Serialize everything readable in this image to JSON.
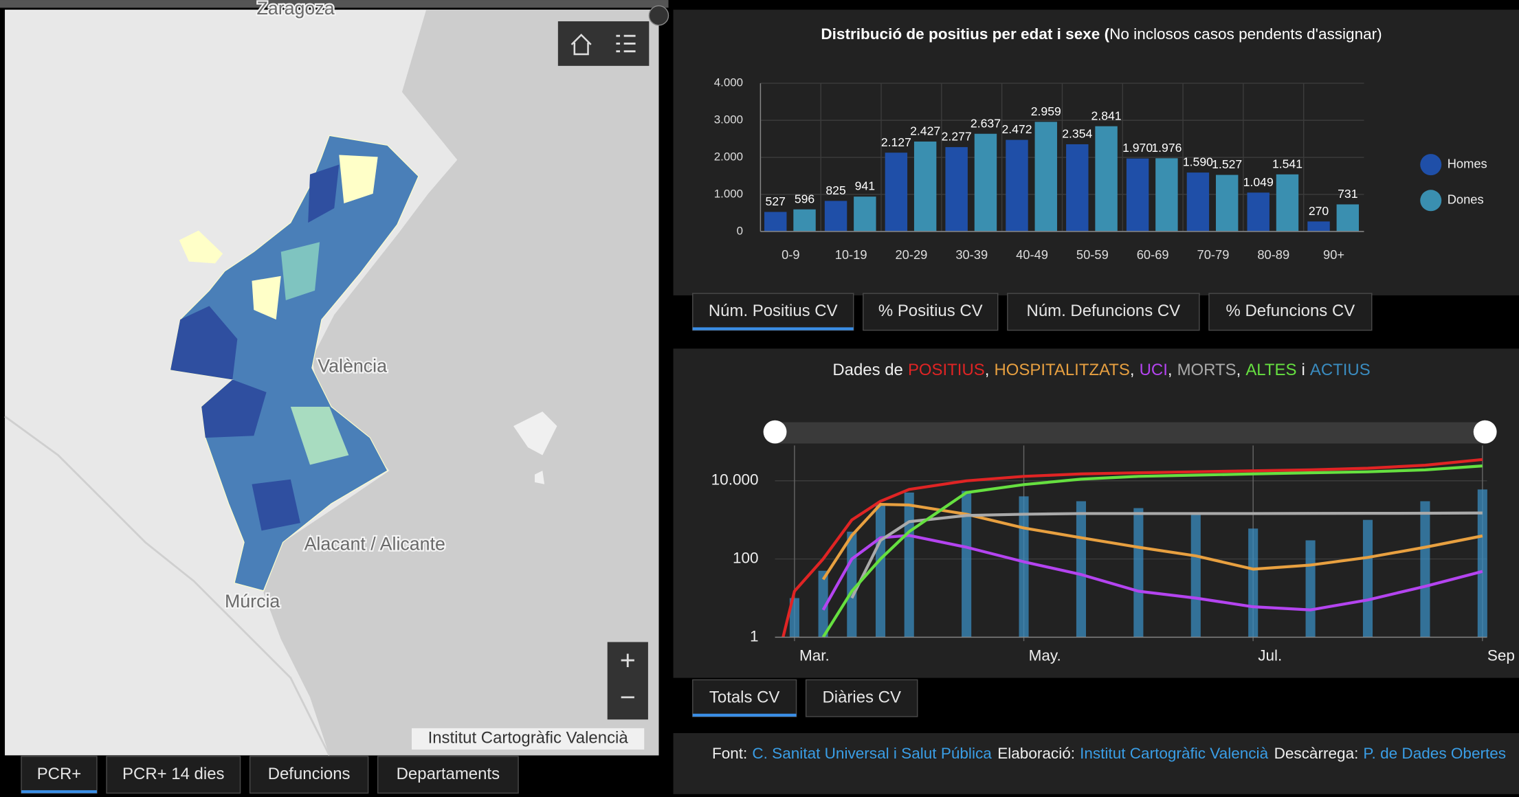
{
  "map": {
    "labels": [
      "Zaragoza",
      "València",
      "Alacant / Alicante",
      "Múrcia"
    ],
    "attribution": "Institut Cartogràfic Valencià",
    "zoom_in": "+",
    "zoom_out": "−"
  },
  "map_tabs": [
    "PCR+",
    "PCR+ 14 dies",
    "Defuncions",
    "Departaments"
  ],
  "chart_tabs": [
    "Núm. Positius CV",
    "% Positius CV",
    "Núm. Defuncions CV",
    "% Defuncions CV"
  ],
  "timeline_tabs": [
    "Totals CV",
    "Diàries CV"
  ],
  "footer": [
    {
      "label": "Font:",
      "link": "C. Sanitat Universal i Salut Pública"
    },
    {
      "label": "Elaboració:",
      "link": "Institut Cartogràfic Valencià"
    },
    {
      "label": "Descàrrega:",
      "link": "P. de Dades Obertes"
    }
  ],
  "chart_data": [
    {
      "type": "bar",
      "title": "Distribució de positius per edat i sexe (",
      "subtitle": "No inclosos casos pendents d'assignar)",
      "categories": [
        "0-9",
        "10-19",
        "20-29",
        "30-39",
        "40-49",
        "50-59",
        "60-69",
        "70-79",
        "80-89",
        "90+"
      ],
      "series": [
        {
          "name": "Homes",
          "color": "#1f4fa8",
          "values": [
            527,
            825,
            2127,
            2277,
            2472,
            2354,
            1970,
            1590,
            1049,
            270
          ],
          "value_labels": [
            "527",
            "825",
            "2.127",
            "2.277",
            "2.472",
            "2.354",
            "1.970",
            "1.590",
            "1.049",
            "270"
          ]
        },
        {
          "name": "Dones",
          "color": "#3a8fb0",
          "values": [
            596,
            941,
            2427,
            2637,
            2959,
            2841,
            1976,
            1527,
            1541,
            731
          ],
          "value_labels": [
            "596",
            "941",
            "2.427",
            "2.637",
            "2.959",
            "2.841",
            "1.976",
            "1.527",
            "1.541",
            "731"
          ]
        }
      ],
      "ylim": [
        0,
        4000
      ],
      "yticks": [
        0,
        {
          "value": 1000,
          "label": "1.000"
        },
        {
          "value": 2000,
          "label": "2.000"
        },
        {
          "value": 3000,
          "label": "3.000"
        },
        {
          "value": 4000,
          "label": "4.000"
        }
      ],
      "grid": true,
      "legend": "right"
    },
    {
      "type": "line",
      "title": "Dades de",
      "separator": ",",
      "conjunction": "i",
      "log_scale": true,
      "grid": true,
      "x": [
        2.9,
        3,
        3.25,
        3.5,
        3.75,
        4,
        4.5,
        5,
        5.5,
        6,
        6.5,
        7,
        7.5,
        8,
        8.5,
        9
      ],
      "xlim": [
        2.83,
        9.04
      ],
      "xticks": [
        {
          "value": 3,
          "label": "Mar."
        },
        {
          "value": 5,
          "label": "May."
        },
        {
          "value": 7,
          "label": "Jul."
        },
        {
          "value": 9,
          "label": "Sep"
        }
      ],
      "ylim": [
        1,
        80000
      ],
      "yticks": [
        1,
        100,
        {
          "value": 10000,
          "label": "10.000"
        }
      ],
      "series": [
        {
          "name": "POSITIUS",
          "color": "#e02424",
          "values": [
            1,
            15,
            100,
            1000,
            3000,
            6000,
            10000,
            13000,
            15000,
            16000,
            17000,
            18000,
            19000,
            21000,
            25000,
            35000
          ]
        },
        {
          "name": "HOSPITALITZATS",
          "color": "#e8a040",
          "values": [
            null,
            null,
            30,
            400,
            2500,
            2400,
            1400,
            620,
            350,
            200,
            120,
            55,
            70,
            110,
            200,
            390
          ]
        },
        {
          "name": "UCI",
          "color": "#b444f0",
          "values": [
            null,
            null,
            5,
            100,
            350,
            400,
            200,
            85,
            40,
            15,
            10,
            6,
            5,
            9,
            20,
            48
          ]
        },
        {
          "name": "MORTS",
          "color": "#aaaaaa",
          "values": [
            null,
            null,
            null,
            10,
            300,
            900,
            1300,
            1400,
            1450,
            1450,
            1450,
            1450,
            1460,
            1470,
            1480,
            1500
          ]
        },
        {
          "name": "ALTES",
          "color": "#66e040",
          "values": [
            null,
            null,
            1,
            15,
            100,
            500,
            5000,
            8000,
            11000,
            13000,
            14000,
            15000,
            16000,
            17000,
            19000,
            24000
          ]
        },
        {
          "name": "ACTIUS",
          "color": "#3a8cc0",
          "type": "bar",
          "values": [
            1,
            10,
            50,
            500,
            2500,
            5000,
            5500,
            4000,
            3000,
            2000,
            1500,
            600,
            300,
            1000,
            3000,
            6000
          ]
        }
      ]
    }
  ]
}
